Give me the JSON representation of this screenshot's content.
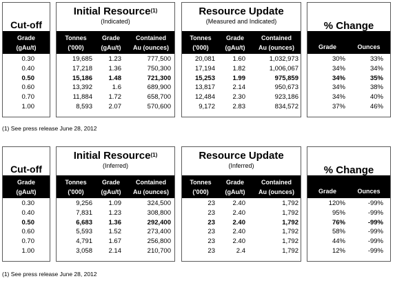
{
  "tables": [
    {
      "cutoff_title": "Cut-off",
      "initial": {
        "title": "Initial Resource",
        "sup": "(1)",
        "subtitle": "(Indicated)"
      },
      "update": {
        "title": "Resource Update",
        "subtitle": "(Measured and Indicated)"
      },
      "change": {
        "title": "% Change"
      },
      "col_headers": {
        "grade_cut": [
          "Grade",
          "(gAu/t)"
        ],
        "tonnes": [
          "Tonnes",
          "('000)"
        ],
        "grade": [
          "Grade",
          "(gAu/t)"
        ],
        "contained": [
          "Contained",
          "Au (ounces)"
        ],
        "change_grade": "Grade",
        "change_ounces": "Ounces"
      },
      "rows": [
        {
          "cutoff": "0.30",
          "i_tonnes": "19,685",
          "i_grade": "1.23",
          "i_au": "777,500",
          "u_tonnes": "20,081",
          "u_grade": "1.60",
          "u_au": "1,032,973",
          "c_grade": "30%",
          "c_oz": "33%",
          "bold": false
        },
        {
          "cutoff": "0.40",
          "i_tonnes": "17,218",
          "i_grade": "1.36",
          "i_au": "750,300",
          "u_tonnes": "17,194",
          "u_grade": "1.82",
          "u_au": "1,006,067",
          "c_grade": "34%",
          "c_oz": "34%",
          "bold": false
        },
        {
          "cutoff": "0.50",
          "i_tonnes": "15,186",
          "i_grade": "1.48",
          "i_au": "721,300",
          "u_tonnes": "15,253",
          "u_grade": "1.99",
          "u_au": "975,859",
          "c_grade": "34%",
          "c_oz": "35%",
          "bold": true
        },
        {
          "cutoff": "0.60",
          "i_tonnes": "13,392",
          "i_grade": "1.6",
          "i_au": "689,900",
          "u_tonnes": "13,817",
          "u_grade": "2.14",
          "u_au": "950,673",
          "c_grade": "34%",
          "c_oz": "38%",
          "bold": false
        },
        {
          "cutoff": "0.70",
          "i_tonnes": "11,884",
          "i_grade": "1.72",
          "i_au": "658,700",
          "u_tonnes": "12,484",
          "u_grade": "2.30",
          "u_au": "923,186",
          "c_grade": "34%",
          "c_oz": "40%",
          "bold": false
        },
        {
          "cutoff": "1.00",
          "i_tonnes": "8,593",
          "i_grade": "2.07",
          "i_au": "570,600",
          "u_tonnes": "9,172",
          "u_grade": "2.83",
          "u_au": "834,572",
          "c_grade": "37%",
          "c_oz": "46%",
          "bold": false
        }
      ],
      "footnote": "(1) See press release June 28, 2012"
    },
    {
      "cutoff_title": "Cut-off",
      "initial": {
        "title": "Initial Resource",
        "sup": "(1)",
        "subtitle": "(Inferred)"
      },
      "update": {
        "title": "Resource Update",
        "subtitle": "(Inferred)"
      },
      "change": {
        "title": "% Change"
      },
      "col_headers": {
        "grade_cut": [
          "Grade",
          "(gAu/t)"
        ],
        "tonnes": [
          "Tonnes",
          "('000)"
        ],
        "grade": [
          "Grade",
          "(gAu/t)"
        ],
        "contained": [
          "Contained",
          "Au (ounces)"
        ],
        "change_grade": "Grade",
        "change_ounces": "Ounces"
      },
      "rows": [
        {
          "cutoff": "0.30",
          "i_tonnes": "9,256",
          "i_grade": "1.09",
          "i_au": "324,500",
          "u_tonnes": "23",
          "u_grade": "2.40",
          "u_au": "1,792",
          "c_grade": "120%",
          "c_oz": "-99%",
          "bold": false
        },
        {
          "cutoff": "0.40",
          "i_tonnes": "7,831",
          "i_grade": "1.23",
          "i_au": "308,800",
          "u_tonnes": "23",
          "u_grade": "2.40",
          "u_au": "1,792",
          "c_grade": "95%",
          "c_oz": "-99%",
          "bold": false
        },
        {
          "cutoff": "0.50",
          "i_tonnes": "6,683",
          "i_grade": "1.36",
          "i_au": "292,400",
          "u_tonnes": "23",
          "u_grade": "2.40",
          "u_au": "1,792",
          "c_grade": "76%",
          "c_oz": "-99%",
          "bold": true
        },
        {
          "cutoff": "0.60",
          "i_tonnes": "5,593",
          "i_grade": "1.52",
          "i_au": "273,400",
          "u_tonnes": "23",
          "u_grade": "2.40",
          "u_au": "1,792",
          "c_grade": "58%",
          "c_oz": "-99%",
          "bold": false
        },
        {
          "cutoff": "0.70",
          "i_tonnes": "4,791",
          "i_grade": "1.67",
          "i_au": "256,800",
          "u_tonnes": "23",
          "u_grade": "2.40",
          "u_au": "1,792",
          "c_grade": "44%",
          "c_oz": "-99%",
          "bold": false
        },
        {
          "cutoff": "1.00",
          "i_tonnes": "3,058",
          "i_grade": "2.14",
          "i_au": "210,700",
          "u_tonnes": "23",
          "u_grade": "2.4",
          "u_au": "1,792",
          "c_grade": "12%",
          "c_oz": "-99%",
          "bold": false
        }
      ],
      "footnote": "(1) See press release June 28, 2012"
    }
  ]
}
